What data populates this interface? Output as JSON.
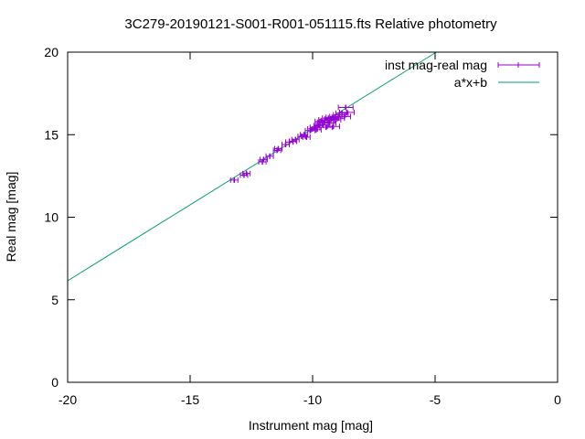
{
  "chart_data": {
    "type": "scatter",
    "title": "3C279-20190121-S001-R001-051115.fts Relative photometry",
    "xlabel": "Instrument mag [mag]",
    "ylabel": "Real mag [mag]",
    "xlim": [
      -20,
      0
    ],
    "ylim": [
      0,
      20
    ],
    "x_ticks": [
      "-20",
      "-15",
      "-10",
      "-5",
      "0"
    ],
    "y_ticks": [
      "0",
      "5",
      "10",
      "15",
      "20"
    ],
    "grid": false,
    "legend_position": "top-right",
    "series": [
      {
        "name": "inst mag-real mag",
        "color": "#9400d3",
        "style": "points-with-x-errorbars",
        "points": [
          {
            "x": -13.2,
            "y": 12.25,
            "xerr": 0.15
          },
          {
            "x": -12.8,
            "y": 12.55,
            "xerr": 0.15
          },
          {
            "x": -12.7,
            "y": 12.65,
            "xerr": 0.15
          },
          {
            "x": -12.05,
            "y": 13.35,
            "xerr": 0.15
          },
          {
            "x": -12.0,
            "y": 13.5,
            "xerr": 0.15
          },
          {
            "x": -11.75,
            "y": 13.7,
            "xerr": 0.15
          },
          {
            "x": -11.45,
            "y": 14.05,
            "xerr": 0.15
          },
          {
            "x": -11.4,
            "y": 14.15,
            "xerr": 0.15
          },
          {
            "x": -11.1,
            "y": 14.4,
            "xerr": 0.15
          },
          {
            "x": -10.95,
            "y": 14.55,
            "xerr": 0.15
          },
          {
            "x": -10.8,
            "y": 14.6,
            "xerr": 0.15
          },
          {
            "x": -10.7,
            "y": 14.7,
            "xerr": 0.15
          },
          {
            "x": -10.45,
            "y": 14.9,
            "xerr": 0.15
          },
          {
            "x": -10.35,
            "y": 15.0,
            "xerr": 0.15
          },
          {
            "x": -10.25,
            "y": 14.85,
            "xerr": 0.15
          },
          {
            "x": -10.1,
            "y": 15.25,
            "xerr": 0.2
          },
          {
            "x": -10.0,
            "y": 15.35,
            "xerr": 0.2
          },
          {
            "x": -9.9,
            "y": 15.45,
            "xerr": 0.2
          },
          {
            "x": -9.85,
            "y": 15.3,
            "xerr": 0.2
          },
          {
            "x": -9.75,
            "y": 15.55,
            "xerr": 0.2
          },
          {
            "x": -9.7,
            "y": 15.8,
            "xerr": 0.2
          },
          {
            "x": -9.6,
            "y": 15.6,
            "xerr": 0.25
          },
          {
            "x": -9.55,
            "y": 15.75,
            "xerr": 0.25
          },
          {
            "x": -9.5,
            "y": 15.9,
            "xerr": 0.25
          },
          {
            "x": -9.45,
            "y": 15.45,
            "xerr": 0.25
          },
          {
            "x": -9.4,
            "y": 15.85,
            "xerr": 0.25
          },
          {
            "x": -9.35,
            "y": 16.0,
            "xerr": 0.25
          },
          {
            "x": -9.3,
            "y": 15.7,
            "xerr": 0.25
          },
          {
            "x": -9.25,
            "y": 15.95,
            "xerr": 0.25
          },
          {
            "x": -9.2,
            "y": 16.05,
            "xerr": 0.25
          },
          {
            "x": -9.15,
            "y": 15.5,
            "xerr": 0.25
          },
          {
            "x": -9.1,
            "y": 15.9,
            "xerr": 0.25
          },
          {
            "x": -9.05,
            "y": 16.1,
            "xerr": 0.25
          },
          {
            "x": -8.95,
            "y": 16.0,
            "xerr": 0.25
          },
          {
            "x": -8.9,
            "y": 16.2,
            "xerr": 0.25
          },
          {
            "x": -8.8,
            "y": 16.3,
            "xerr": 0.25
          },
          {
            "x": -8.7,
            "y": 16.1,
            "xerr": 0.25
          },
          {
            "x": -8.65,
            "y": 16.65,
            "xerr": 0.3
          },
          {
            "x": -8.6,
            "y": 16.35,
            "xerr": 0.3
          }
        ]
      },
      {
        "name": "a*x+b",
        "color": "#009e73",
        "style": "line",
        "x": [
          -20,
          -4.95
        ],
        "y": [
          6.15,
          20
        ]
      }
    ]
  }
}
